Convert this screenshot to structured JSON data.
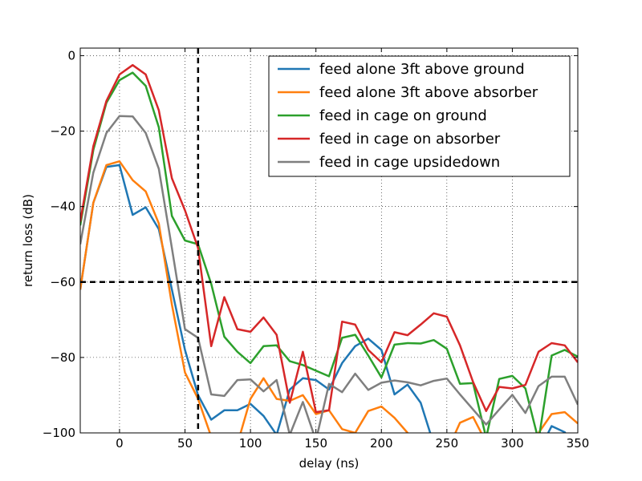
{
  "chart_data": {
    "type": "line",
    "xlabel": "delay (ns)",
    "ylabel": "return loss (dB)",
    "xlim": [
      -30,
      350
    ],
    "ylim": [
      -100,
      2
    ],
    "x_ticks": [
      0,
      50,
      100,
      150,
      200,
      250,
      300,
      350
    ],
    "y_ticks": [
      0,
      -20,
      -40,
      -60,
      -80,
      -100
    ],
    "x_tick_labels": [
      "0",
      "50",
      "100",
      "150",
      "200",
      "250",
      "300",
      "350"
    ],
    "y_tick_labels": [
      "0",
      "−20",
      "−40",
      "−60",
      "−80",
      "−100"
    ],
    "grid": true,
    "legend_position": "top-right",
    "threshold_lines": {
      "x": 60,
      "y": -60,
      "color": "#000000",
      "style": "dashed"
    },
    "x": [
      -30,
      -20,
      -10,
      0,
      10,
      20,
      30,
      40,
      50,
      60,
      70,
      80,
      90,
      100,
      110,
      120,
      130,
      140,
      150,
      160,
      170,
      180,
      190,
      200,
      210,
      220,
      230,
      240,
      250,
      260,
      270,
      280,
      290,
      300,
      310,
      320,
      330,
      340,
      350
    ],
    "series": [
      {
        "name": "feed alone 3ft above ground",
        "color": "#1f77b4",
        "values": [
          -62,
          -39,
          -29.5,
          -29,
          -42.2,
          -40.2,
          -46,
          -62,
          -78,
          -90,
          -96.5,
          -94,
          -94,
          -92.3,
          -95.5,
          -100.5,
          -88.5,
          -85.5,
          -86,
          -88.5,
          -81.5,
          -77,
          -75,
          -78,
          -89.8,
          -87.2,
          -92,
          -103,
          -105,
          -105,
          -105,
          -105,
          -105,
          -105,
          -105,
          -105,
          -98.2,
          -99.8,
          -105
        ]
      },
      {
        "name": "feed alone 3ft above absorber",
        "color": "#ff7f0e",
        "values": [
          -62,
          -39,
          -29,
          -28,
          -33,
          -36,
          -44.5,
          -66,
          -84,
          -91,
          -101,
          -103,
          -103,
          -91,
          -85.5,
          -91,
          -91.5,
          -90,
          -95,
          -94,
          -99,
          -100,
          -94.2,
          -93,
          -96,
          -100,
          -105,
          -105,
          -105,
          -97.3,
          -95.8,
          -102.5,
          -105,
          -105,
          -105,
          -100,
          -95,
          -94.5,
          -97.5
        ]
      },
      {
        "name": "feed in cage on ground",
        "color": "#2ca02c",
        "values": [
          -45,
          -25,
          -12.5,
          -6.5,
          -4.5,
          -8,
          -19,
          -42.5,
          -49,
          -50,
          -60.5,
          -74.5,
          -78.5,
          -81.5,
          -77,
          -76.8,
          -81,
          -82,
          -83.5,
          -85,
          -74.8,
          -74,
          -79.5,
          -85.3,
          -76.6,
          -76.2,
          -76.3,
          -75.4,
          -77.7,
          -87,
          -86.8,
          -101.3,
          -85.7,
          -84.9,
          -88.2,
          -102,
          -79.5,
          -78,
          -79.8
        ]
      },
      {
        "name": "feed in cage on absorber",
        "color": "#d62728",
        "values": [
          -44,
          -24,
          -12,
          -5,
          -2.5,
          -5,
          -14.5,
          -32.5,
          -41,
          -51,
          -77,
          -64,
          -72.5,
          -73.2,
          -69.4,
          -74,
          -92,
          -78.5,
          -94.5,
          -94,
          -70.5,
          -71.3,
          -78,
          -81.3,
          -73.3,
          -74.1,
          -71.3,
          -68.3,
          -69.2,
          -76.8,
          -86.5,
          -94.2,
          -87.8,
          -88.2,
          -87.3,
          -78.5,
          -76.2,
          -76.8,
          -81.3
        ]
      },
      {
        "name": "feed in cage upsidedown",
        "color": "#7f7f7f",
        "values": [
          -50,
          -31,
          -20.5,
          -16,
          -16.1,
          -20.5,
          -30,
          -51,
          -72.5,
          -74.8,
          -89.8,
          -90.2,
          -86,
          -85.8,
          -89,
          -86,
          -100.5,
          -91.8,
          -102,
          -87,
          -89.2,
          -84.3,
          -88.6,
          -86.7,
          -86.1,
          -86.6,
          -87.4,
          -86.2,
          -85.6,
          -89.8,
          -93.8,
          -97.8,
          -93.8,
          -89.9,
          -94.7,
          -87.6,
          -85.1,
          -85.1,
          -92.5
        ]
      }
    ]
  }
}
